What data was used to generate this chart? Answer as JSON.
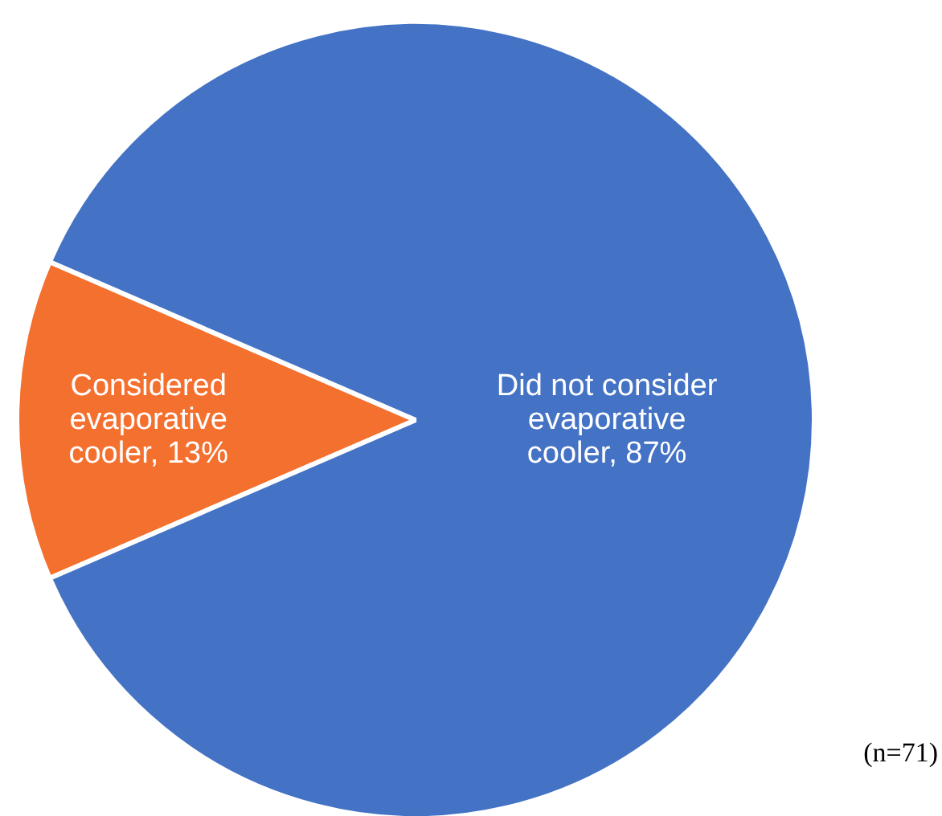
{
  "chart_data": {
    "type": "pie",
    "categories": [
      "Considered evaporative cooler",
      "Did not consider evaporative cooler"
    ],
    "values": [
      13,
      87
    ],
    "colors": [
      "#f4702f",
      "#4472c4"
    ],
    "value_labels": [
      "13%",
      "87%"
    ],
    "annotations": [
      "(n=71)"
    ]
  }
}
